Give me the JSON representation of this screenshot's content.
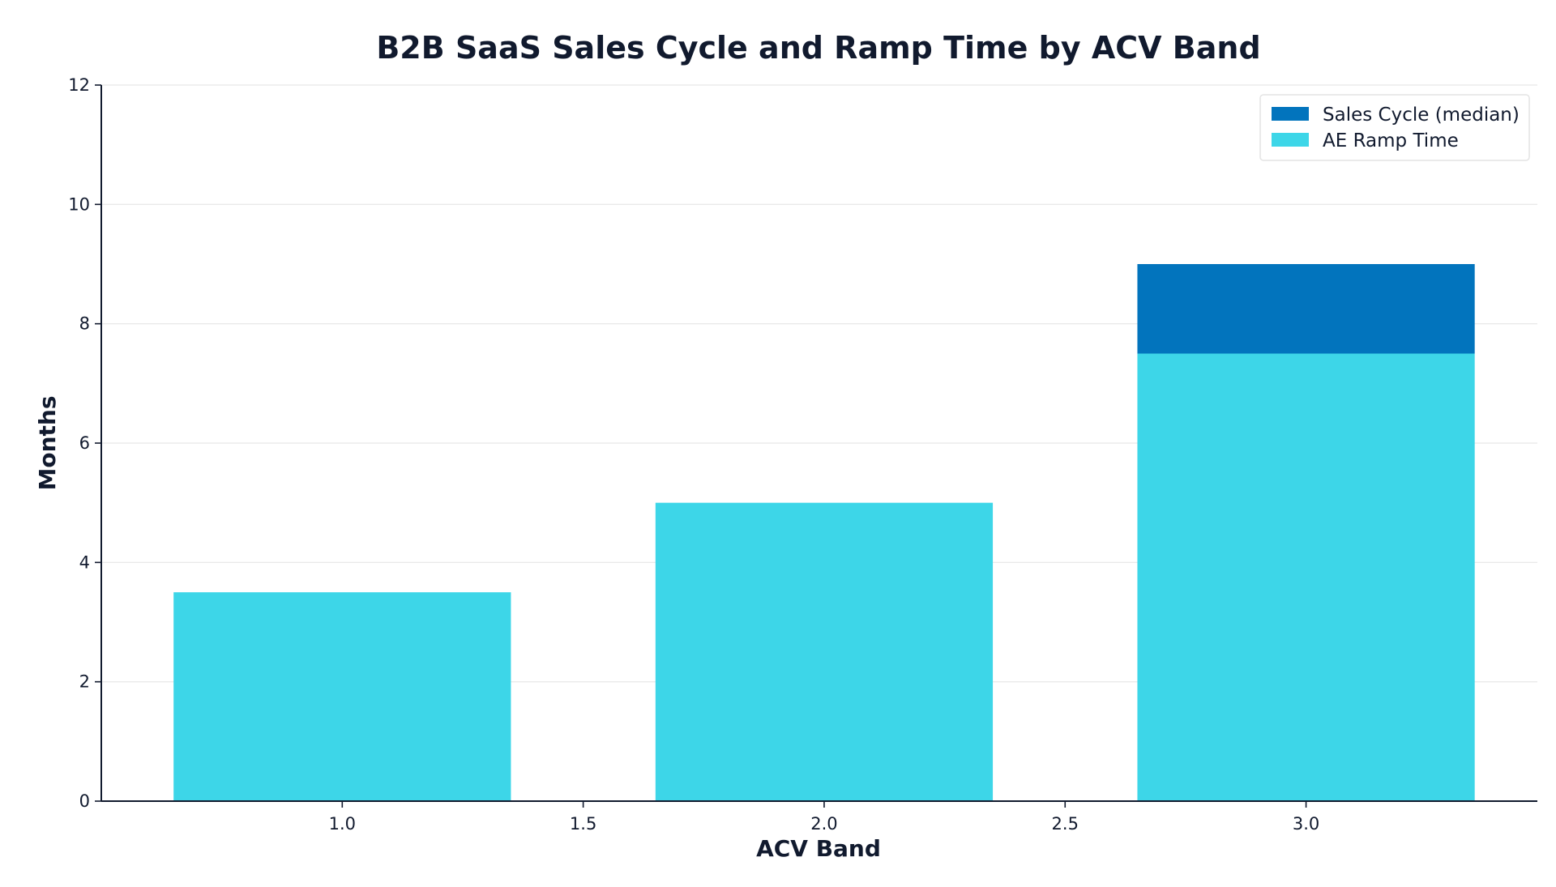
{
  "chart_data": {
    "type": "bar",
    "stacked": true,
    "title": "B2B SaaS Sales Cycle and Ramp Time by ACV Band",
    "xlabel": "ACV Band",
    "ylabel": "Months",
    "x": [
      1.0,
      2.0,
      3.0
    ],
    "series": [
      {
        "name": "AE Ramp Time",
        "values": [
          3.5,
          5.0,
          7.5
        ],
        "color": "#3dd6e8"
      },
      {
        "name": "Sales Cycle (median)",
        "values": [
          0,
          0,
          1.5
        ],
        "color": "#0274bd"
      }
    ],
    "xlim": [
      0.5,
      3.48
    ],
    "ylim": [
      0,
      12
    ],
    "x_ticks": [
      "1.0",
      "1.5",
      "2.0",
      "2.5",
      "3.0"
    ],
    "y_ticks": [
      "0",
      "2",
      "4",
      "6",
      "8",
      "10",
      "12"
    ],
    "bar_width": 0.7,
    "grid": "horizontal",
    "legend": {
      "position": "top-right",
      "entries": [
        "Sales Cycle (median)",
        "AE Ramp Time"
      ]
    },
    "colors": {
      "sales_cycle": "#0274bd",
      "ramp_time": "#3dd6e8",
      "axis": "#111a2e",
      "grid": "#e6e6e6"
    }
  }
}
